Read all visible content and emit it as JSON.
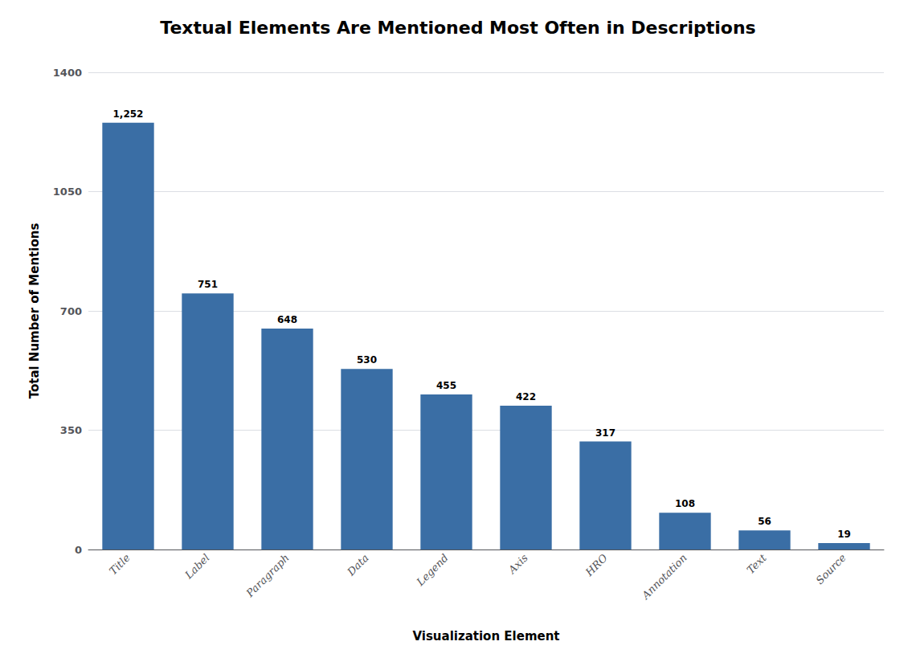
{
  "chart_data": {
    "type": "bar",
    "title": "Textual Elements Are Mentioned Most Often in Descriptions",
    "categories": [
      "Title",
      "Label",
      "Paragraph",
      "Data",
      "Legend",
      "Axis",
      "HRO",
      "Annotation",
      "Text",
      "Source"
    ],
    "values": [
      1252,
      751,
      648,
      530,
      455,
      422,
      317,
      108,
      56,
      19
    ],
    "value_labels": [
      "1,252",
      "751",
      "648",
      "530",
      "455",
      "422",
      "317",
      "108",
      "56",
      "19"
    ],
    "data_labels": true,
    "color": "#3A6EA5",
    "xlabel": "Visualization Element",
    "ylabel": "Total Number of Mentions",
    "ylim": [
      0,
      1400
    ],
    "yticks": [
      0,
      350,
      700,
      1050,
      1400
    ],
    "grid": true
  }
}
